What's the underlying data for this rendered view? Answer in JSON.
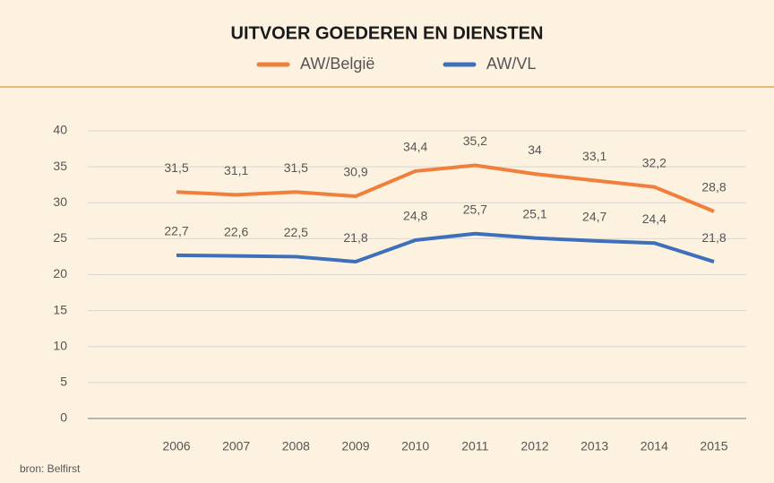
{
  "chart_data": {
    "type": "line",
    "title": "UITVOER GOEDEREN EN DIENSTEN",
    "categories": [
      "2006",
      "2007",
      "2008",
      "2009",
      "2010",
      "2011",
      "2012",
      "2013",
      "2014",
      "2015"
    ],
    "series": [
      {
        "name": "AW/België",
        "color": "#f07f3c",
        "values": [
          31.5,
          31.1,
          31.5,
          30.9,
          34.4,
          35.2,
          34,
          33.1,
          32.2,
          28.8
        ],
        "value_labels": [
          "31,5",
          "31,1",
          "31,5",
          "30,9",
          "34,4",
          "35,2",
          "34",
          "33,1",
          "32,2",
          "28,8"
        ]
      },
      {
        "name": "AW/VL",
        "color": "#3e6fba",
        "values": [
          22.7,
          22.6,
          22.5,
          21.8,
          24.8,
          25.7,
          25.1,
          24.7,
          24.4,
          21.8
        ],
        "value_labels": [
          "22,7",
          "22,6",
          "22,5",
          "21,8",
          "24,8",
          "25,7",
          "25,1",
          "24,7",
          "24,4",
          "21,8"
        ]
      }
    ],
    "ylim": [
      0,
      40
    ],
    "yticks": [
      0,
      5,
      10,
      15,
      20,
      25,
      30,
      35,
      40
    ],
    "grid": true,
    "legend": "top",
    "source": "bron: Belfirst"
  }
}
